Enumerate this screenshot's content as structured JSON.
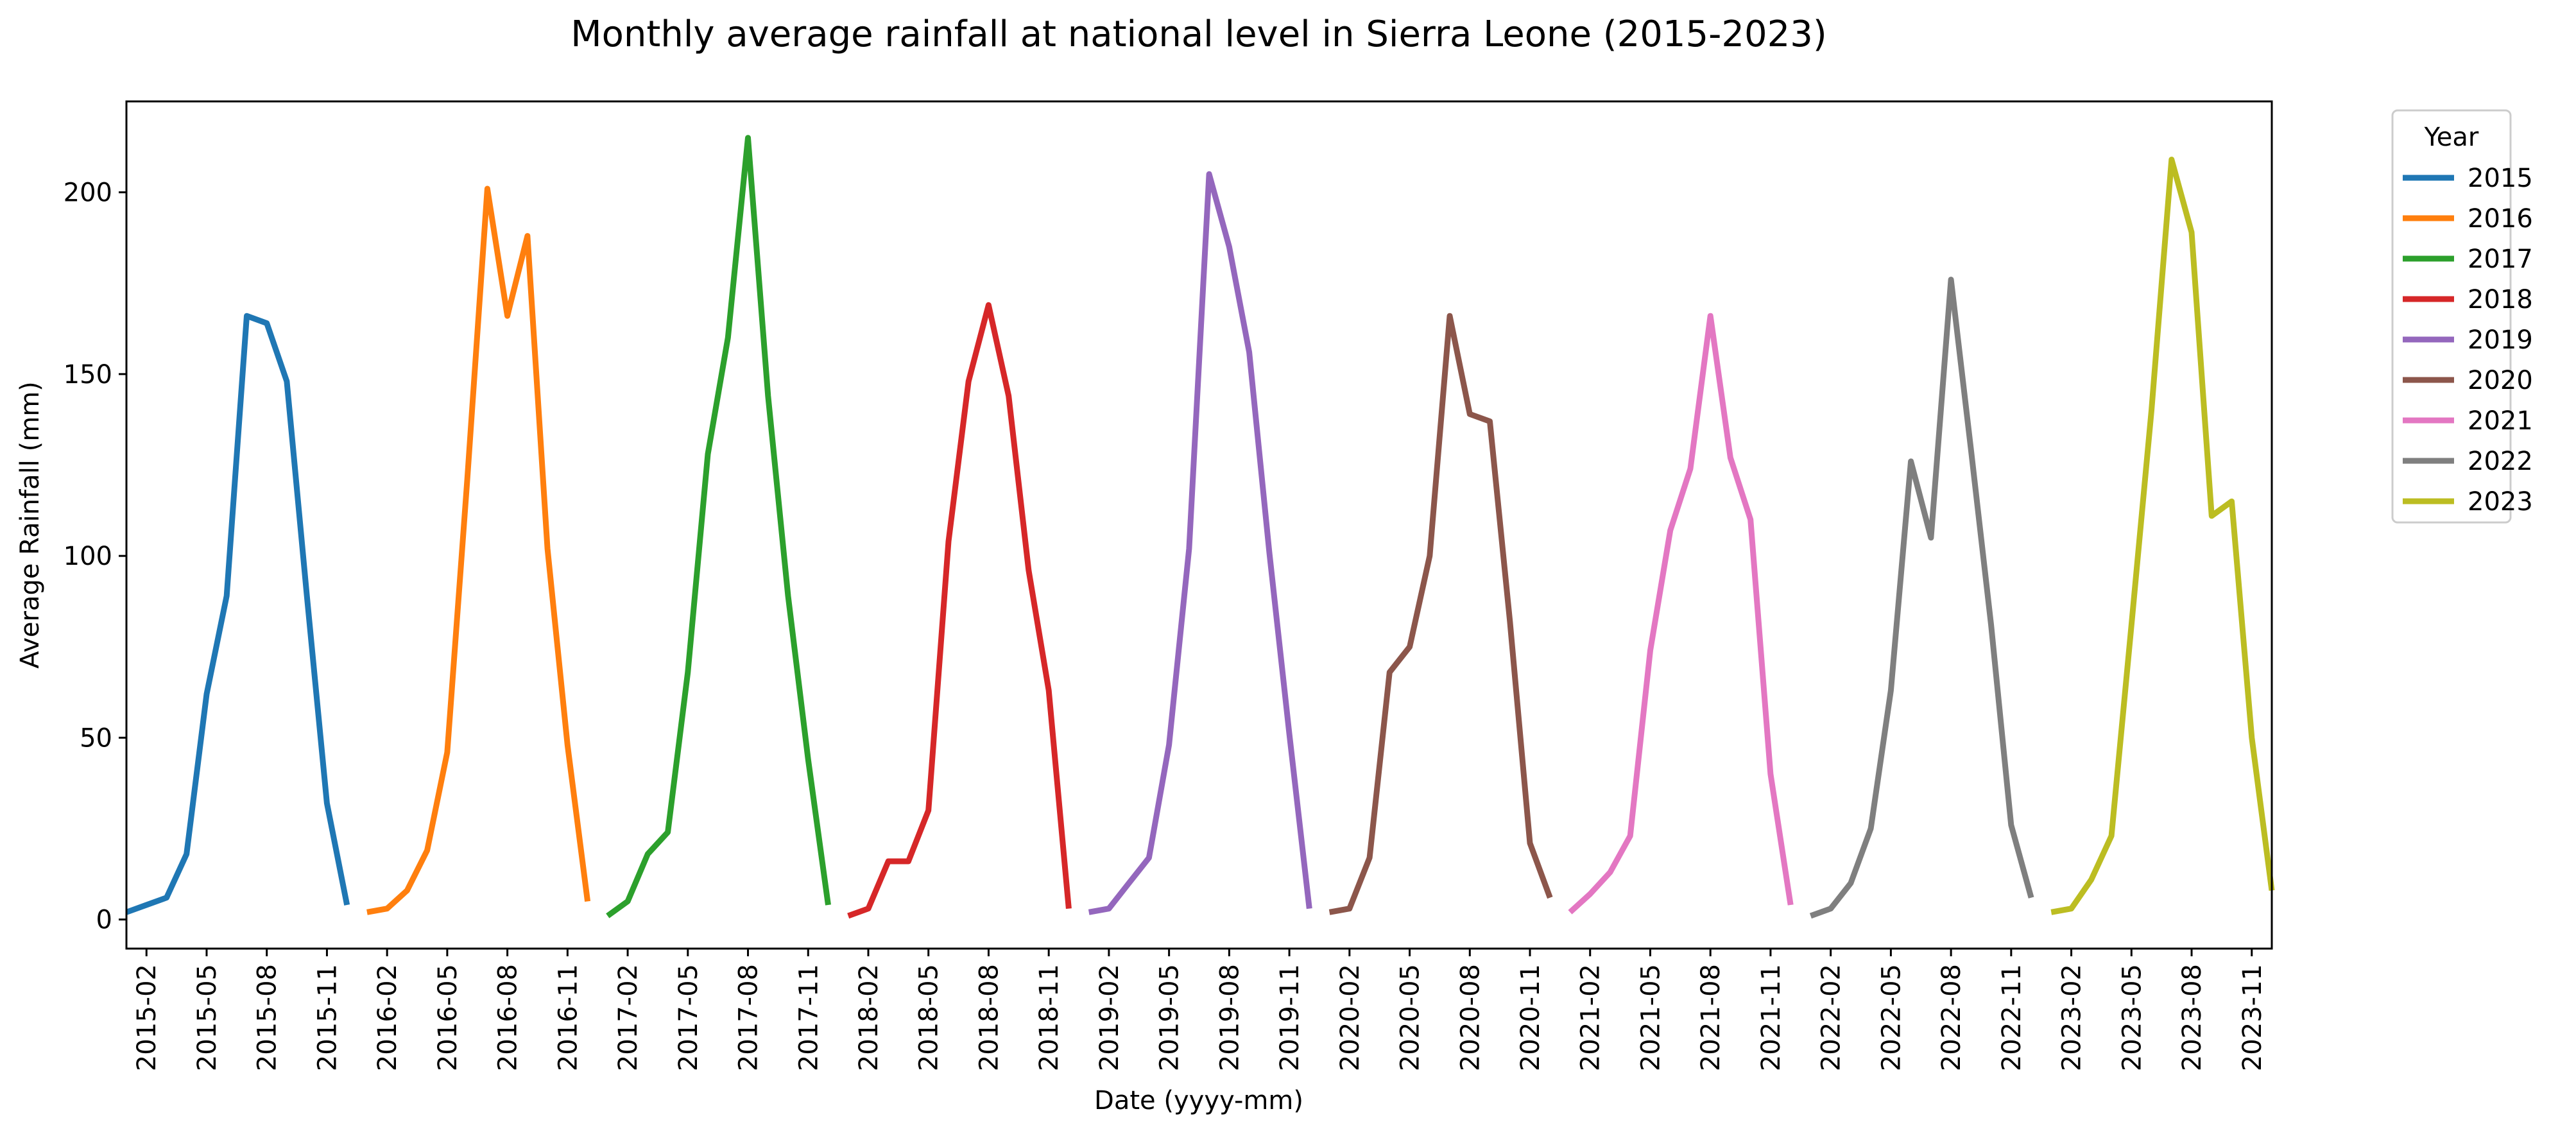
{
  "chart_data": {
    "type": "line",
    "title": "Monthly average rainfall at national level in Sierra Leone (2015-2023)",
    "xlabel": "Date (yyyy-mm)",
    "ylabel": "Average Rainfall (mm)",
    "ylim": [
      -8,
      225
    ],
    "yticks": [
      0,
      50,
      100,
      150,
      200
    ],
    "x_range": [
      "2015-01",
      "2023-12"
    ],
    "xticks": [
      "2015-02",
      "2015-05",
      "2015-08",
      "2015-11",
      "2016-02",
      "2016-05",
      "2016-08",
      "2016-11",
      "2017-02",
      "2017-05",
      "2017-08",
      "2017-11",
      "2018-02",
      "2018-05",
      "2018-08",
      "2018-11",
      "2019-02",
      "2019-05",
      "2019-08",
      "2019-11",
      "2020-02",
      "2020-05",
      "2020-08",
      "2020-11",
      "2021-02",
      "2021-05",
      "2021-08",
      "2021-11",
      "2022-02",
      "2022-05",
      "2022-08",
      "2022-11",
      "2023-02",
      "2023-05",
      "2023-08",
      "2023-11"
    ],
    "grid": false,
    "legend": {
      "title": "Year",
      "placement": "outside-top-right"
    },
    "series": [
      {
        "name": "2015",
        "color": "#1f77b4",
        "values": [
          2,
          4,
          6,
          18,
          62,
          89,
          166,
          164,
          148,
          89,
          32,
          4
        ]
      },
      {
        "name": "2016",
        "color": "#ff7f0e",
        "values": [
          2,
          3,
          8,
          19,
          46,
          121,
          201,
          166,
          188,
          102,
          48,
          5
        ]
      },
      {
        "name": "2017",
        "color": "#2ca02c",
        "values": [
          1,
          5,
          18,
          24,
          68,
          128,
          160,
          215,
          144,
          89,
          44,
          4
        ]
      },
      {
        "name": "2018",
        "color": "#d62728",
        "values": [
          1,
          3,
          16,
          16,
          30,
          104,
          148,
          169,
          144,
          96,
          63,
          3
        ]
      },
      {
        "name": "2019",
        "color": "#9467bd",
        "values": [
          2,
          3,
          10,
          17,
          48,
          102,
          205,
          185,
          156,
          101,
          51,
          3
        ]
      },
      {
        "name": "2020",
        "color": "#8c564b",
        "values": [
          2,
          3,
          17,
          68,
          75,
          100,
          166,
          139,
          137,
          82,
          21,
          6
        ]
      },
      {
        "name": "2021",
        "color": "#e377c2",
        "values": [
          2,
          7,
          13,
          23,
          74,
          107,
          124,
          166,
          127,
          110,
          40,
          4
        ]
      },
      {
        "name": "2022",
        "color": "#7f7f7f",
        "values": [
          1,
          3,
          10,
          25,
          63,
          126,
          105,
          176,
          129,
          81,
          26,
          6
        ]
      },
      {
        "name": "2023",
        "color": "#bcbd22",
        "values": [
          2,
          3,
          11,
          23,
          81,
          140,
          209,
          189,
          111,
          115,
          50,
          8
        ]
      }
    ]
  }
}
